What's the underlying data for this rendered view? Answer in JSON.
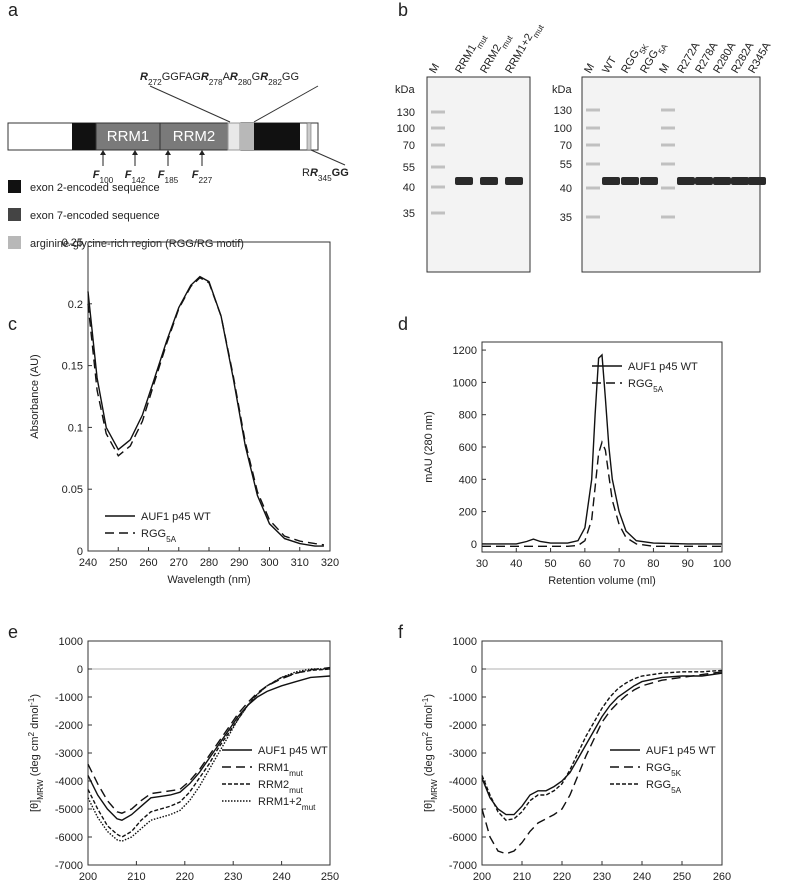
{
  "panel_labels": [
    "a",
    "b",
    "c",
    "d",
    "e",
    "f"
  ],
  "diagram": {
    "domains": [
      "RRM1",
      "RRM2"
    ],
    "top_label": [
      {
        "text": "R",
        "style": "bi"
      },
      {
        "text": "272",
        "style": "sub"
      },
      {
        "text": "GGFAG"
      },
      {
        "text": "R",
        "style": "bi"
      },
      {
        "text": "278",
        "style": "sub"
      },
      {
        "text": "A"
      },
      {
        "text": "R",
        "style": "bi"
      },
      {
        "text": "280",
        "style": "sub"
      },
      {
        "text": "G"
      },
      {
        "text": "R",
        "style": "bi"
      },
      {
        "text": "282",
        "style": "sub"
      },
      {
        "text": "GG"
      }
    ],
    "bottom_label": [
      {
        "text": "R"
      },
      {
        "text": "R",
        "style": "bi"
      },
      {
        "text": "345",
        "style": "sub"
      },
      {
        "text": "GG",
        "style": "b"
      }
    ],
    "residues": [
      [
        {
          "text": "F",
          "style": "bi"
        },
        {
          "text": "100",
          "style": "sub"
        }
      ],
      [
        {
          "text": "F",
          "style": "bi"
        },
        {
          "text": "142",
          "style": "sub"
        }
      ],
      [
        {
          "text": "F",
          "style": "bi"
        },
        {
          "text": "185",
          "style": "sub"
        }
      ],
      [
        {
          "text": "F",
          "style": "bi"
        },
        {
          "text": "227",
          "style": "sub"
        }
      ]
    ],
    "legend": [
      "exon 2-encoded sequence",
      "exon 7-encoded sequence",
      "arginine-glycine-rich region (RGG/RG motif)"
    ]
  },
  "gels": [
    {
      "kda_label": "kDa",
      "markers": [
        130,
        100,
        70,
        55,
        40,
        35
      ],
      "lanes": [
        [
          {
            "text": "M"
          }
        ],
        [
          {
            "text": "RRM1"
          },
          {
            "text": "mut",
            "style": "sub"
          }
        ],
        [
          {
            "text": "RRM2"
          },
          {
            "text": "mut",
            "style": "sub"
          }
        ],
        [
          {
            "text": "RRM1+2"
          },
          {
            "text": "mut",
            "style": "sub"
          }
        ]
      ]
    },
    {
      "kda_label": "kDa",
      "markers": [
        130,
        100,
        70,
        55,
        40,
        35
      ],
      "lanes": [
        [
          {
            "text": "M"
          }
        ],
        [
          {
            "text": "WT"
          }
        ],
        [
          {
            "text": "RGG"
          },
          {
            "text": "5K",
            "style": "sub"
          }
        ],
        [
          {
            "text": "RGG"
          },
          {
            "text": "5A",
            "style": "sub"
          }
        ],
        [
          {
            "text": "M"
          }
        ],
        [
          {
            "text": "R272A"
          }
        ],
        [
          {
            "text": "R278A"
          }
        ],
        [
          {
            "text": "R280A"
          }
        ],
        [
          {
            "text": "R282A"
          }
        ],
        [
          {
            "text": "R345A"
          }
        ]
      ]
    }
  ],
  "chart_data": [
    {
      "type": "line",
      "xlabel": "Wavelength (nm)",
      "ylabel": "Absorbance (AU)",
      "x": [
        240,
        243,
        246,
        250,
        254,
        258,
        262,
        266,
        270,
        274,
        277,
        280,
        284,
        288,
        292,
        296,
        300,
        305,
        310,
        315,
        318
      ],
      "xlim": [
        240,
        320
      ],
      "xticks": [
        240,
        250,
        260,
        270,
        280,
        290,
        300,
        310,
        320
      ],
      "ylim": [
        0,
        0.25
      ],
      "yticks": [
        0,
        0.05,
        0.1,
        0.15,
        0.2,
        0.25
      ],
      "series": [
        {
          "name": "AUF1 p45 WT",
          "color": "#111",
          "style": "solid",
          "values": [
            0.21,
            0.14,
            0.1,
            0.082,
            0.09,
            0.11,
            0.14,
            0.17,
            0.197,
            0.215,
            0.222,
            0.218,
            0.19,
            0.14,
            0.085,
            0.045,
            0.022,
            0.01,
            0.006,
            0.004,
            0.004
          ]
        },
        {
          "name": "RGG",
          "name_sub": "5A",
          "color": "#111",
          "style": "dashed",
          "values": [
            0.2,
            0.13,
            0.095,
            0.077,
            0.085,
            0.105,
            0.137,
            0.168,
            0.196,
            0.214,
            0.221,
            0.217,
            0.19,
            0.142,
            0.088,
            0.048,
            0.025,
            0.012,
            0.008,
            0.006,
            0.005
          ]
        }
      ]
    },
    {
      "type": "line",
      "xlabel": "Retention volume (ml)",
      "ylabel": "mAU (280 nm)",
      "x": [
        30,
        40,
        43,
        45,
        47,
        50,
        55,
        58,
        60,
        62,
        63,
        64,
        65,
        66,
        67,
        68,
        70,
        72,
        75,
        80,
        90,
        100
      ],
      "xlim": [
        30,
        100
      ],
      "xticks": [
        30,
        40,
        50,
        60,
        70,
        80,
        90,
        100
      ],
      "ylim": [
        -50,
        1250
      ],
      "yticks": [
        0,
        200,
        400,
        600,
        800,
        1000,
        1200
      ],
      "series": [
        {
          "name": "AUF1 p45 WT",
          "color": "#111",
          "style": "solid",
          "values": [
            0,
            0,
            15,
            30,
            15,
            5,
            5,
            20,
            100,
            400,
            800,
            1150,
            1170,
            900,
            600,
            400,
            200,
            80,
            20,
            5,
            0,
            0
          ]
        },
        {
          "name": "RGG",
          "name_sub": "5A",
          "color": "#111",
          "style": "dashed",
          "values": [
            -15,
            -15,
            -15,
            -15,
            -15,
            -15,
            -15,
            -10,
            20,
            150,
            350,
            560,
            630,
            580,
            420,
            270,
            120,
            40,
            0,
            -15,
            -15,
            -15
          ]
        }
      ]
    },
    {
      "type": "line",
      "xlabel": "Wavelength (nm)",
      "ylabel": [
        {
          "text": "[θ]"
        },
        {
          "text": "MRW",
          "style": "sub"
        },
        {
          "text": " (deg  cm"
        },
        {
          "text": "2",
          "style": "sup"
        },
        {
          "text": "  dmol"
        },
        {
          "text": "-1",
          "style": "sup"
        },
        {
          "text": ")"
        }
      ],
      "x": [
        200,
        202,
        204,
        206,
        207,
        209,
        211,
        213,
        215,
        217,
        219,
        221,
        223,
        225,
        227,
        229,
        231,
        233,
        235,
        237,
        240,
        243,
        246,
        250
      ],
      "xlim": [
        200,
        250
      ],
      "xticks": [
        200,
        210,
        220,
        230,
        240,
        250
      ],
      "ylim": [
        -7000,
        1000
      ],
      "yticks": [
        -7000,
        -6000,
        -5000,
        -4000,
        -3000,
        -2000,
        -1000,
        0,
        1000
      ],
      "series": [
        {
          "name": "AUF1 p45 WT",
          "color": "#111",
          "style": "solid",
          "values": [
            -3800,
            -4500,
            -5000,
            -5350,
            -5400,
            -5200,
            -4900,
            -4600,
            -4550,
            -4500,
            -4400,
            -4100,
            -3700,
            -3200,
            -2700,
            -2200,
            -1700,
            -1300,
            -1000,
            -800,
            -600,
            -450,
            -300,
            -250
          ]
        },
        {
          "name": "RRM1",
          "name_sub": "mut",
          "color": "#111",
          "style": "dashed",
          "values": [
            -3400,
            -4100,
            -4700,
            -5100,
            -5150,
            -5000,
            -4700,
            -4450,
            -4400,
            -4350,
            -4300,
            -4000,
            -3600,
            -3100,
            -2600,
            -2100,
            -1600,
            -1200,
            -850,
            -600,
            -350,
            -150,
            -30,
            50
          ]
        },
        {
          "name": "RRM2",
          "name_sub": "mut",
          "color": "#111",
          "style": "short-dashed",
          "values": [
            -4300,
            -5000,
            -5600,
            -5900,
            -6000,
            -5800,
            -5400,
            -5100,
            -5000,
            -4900,
            -4750,
            -4400,
            -3900,
            -3400,
            -2800,
            -2300,
            -1800,
            -1300,
            -900,
            -600,
            -300,
            -150,
            -50,
            0
          ]
        },
        {
          "name": "RRM1+2",
          "name_sub": "mut",
          "color": "#111",
          "style": "dotted",
          "values": [
            -4600,
            -5300,
            -5800,
            -6100,
            -6150,
            -6000,
            -5700,
            -5400,
            -5300,
            -5200,
            -5050,
            -4700,
            -4200,
            -3600,
            -3000,
            -2400,
            -1800,
            -1300,
            -900,
            -600,
            -300,
            -100,
            0,
            0
          ]
        }
      ]
    },
    {
      "type": "line",
      "xlabel": "Wavelength (nm)",
      "ylabel": [
        {
          "text": "[θ]"
        },
        {
          "text": "MRW",
          "style": "sub"
        },
        {
          "text": " (deg  cm"
        },
        {
          "text": "2",
          "style": "sup"
        },
        {
          "text": "  dmol"
        },
        {
          "text": "-1",
          "style": "sup"
        },
        {
          "text": ")"
        }
      ],
      "x": [
        200,
        202,
        204,
        206,
        208,
        210,
        212,
        214,
        216,
        218,
        220,
        222,
        224,
        226,
        228,
        230,
        232,
        234,
        236,
        238,
        240,
        245,
        250,
        255,
        260
      ],
      "xlim": [
        200,
        260
      ],
      "xticks": [
        200,
        210,
        220,
        230,
        240,
        250,
        260
      ],
      "ylim": [
        -7000,
        1000
      ],
      "yticks": [
        -7000,
        -6000,
        -5000,
        -4000,
        -3000,
        -2000,
        -1000,
        0,
        1000
      ],
      "series": [
        {
          "name": "AUF1 p45 WT",
          "color": "#111",
          "style": "solid",
          "values": [
            -3900,
            -4600,
            -5000,
            -5200,
            -5200,
            -4900,
            -4500,
            -4350,
            -4350,
            -4200,
            -4000,
            -3700,
            -3200,
            -2700,
            -2200,
            -1700,
            -1300,
            -1000,
            -800,
            -600,
            -450,
            -300,
            -250,
            -250,
            -150
          ]
        },
        {
          "name": "RGG",
          "name_sub": "5K",
          "color": "#111",
          "style": "dashed",
          "values": [
            -5000,
            -6000,
            -6500,
            -6600,
            -6500,
            -6200,
            -5800,
            -5500,
            -5350,
            -5200,
            -5000,
            -4500,
            -3800,
            -3100,
            -2500,
            -1900,
            -1500,
            -1200,
            -950,
            -750,
            -600,
            -400,
            -300,
            -200,
            -100
          ]
        },
        {
          "name": "RGG",
          "name_sub": "5A",
          "color": "#111",
          "style": "short-dashed",
          "values": [
            -3800,
            -4500,
            -5100,
            -5400,
            -5350,
            -5100,
            -4700,
            -4500,
            -4500,
            -4350,
            -4100,
            -3600,
            -3000,
            -2400,
            -1900,
            -1400,
            -1000,
            -700,
            -500,
            -350,
            -250,
            -150,
            -100,
            -100,
            -50
          ]
        }
      ]
    }
  ]
}
